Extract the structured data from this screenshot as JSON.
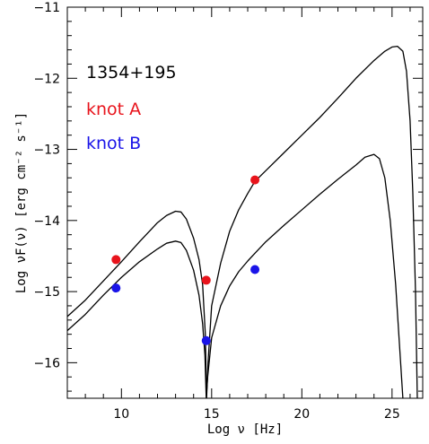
{
  "chart_data": {
    "type": "scatter",
    "xlabel": "Log ν [Hz]",
    "ylabel": "Log νF(ν) [erg cm⁻² s⁻¹]",
    "xlim": [
      7,
      26.7
    ],
    "ylim": [
      -16.5,
      -11
    ],
    "x_ticks": [
      10,
      15,
      20,
      25
    ],
    "y_ticks": [
      -16,
      -15,
      -14,
      -13,
      -12,
      -11
    ],
    "legend_title": "1354+195",
    "series": [
      {
        "name": "knot A",
        "color": "#e8141c",
        "points": [
          {
            "x": 9.7,
            "y": -14.55
          },
          {
            "x": 14.7,
            "y": -14.84
          },
          {
            "x": 17.4,
            "y": -13.43
          }
        ],
        "model": [
          [
            7.0,
            -15.35
          ],
          [
            8.0,
            -15.12
          ],
          [
            9.0,
            -14.85
          ],
          [
            10.0,
            -14.58
          ],
          [
            11.0,
            -14.3
          ],
          [
            12.0,
            -14.03
          ],
          [
            12.5,
            -13.93
          ],
          [
            13.0,
            -13.87
          ],
          [
            13.3,
            -13.88
          ],
          [
            13.6,
            -13.98
          ],
          [
            14.0,
            -14.25
          ],
          [
            14.3,
            -14.55
          ],
          [
            14.5,
            -14.9
          ],
          [
            14.65,
            -15.6
          ],
          [
            14.72,
            -16.5
          ],
          [
            14.8,
            -16.0
          ],
          [
            15.0,
            -15.2
          ],
          [
            15.5,
            -14.6
          ],
          [
            16.0,
            -14.15
          ],
          [
            16.5,
            -13.85
          ],
          [
            17.0,
            -13.62
          ],
          [
            17.4,
            -13.45
          ],
          [
            18.0,
            -13.3
          ],
          [
            19.0,
            -13.05
          ],
          [
            20.0,
            -12.8
          ],
          [
            21.0,
            -12.55
          ],
          [
            22.0,
            -12.28
          ],
          [
            23.0,
            -12.0
          ],
          [
            24.0,
            -11.75
          ],
          [
            24.6,
            -11.62
          ],
          [
            25.0,
            -11.56
          ],
          [
            25.3,
            -11.55
          ],
          [
            25.6,
            -11.62
          ],
          [
            25.8,
            -11.9
          ],
          [
            26.0,
            -12.6
          ],
          [
            26.15,
            -13.6
          ],
          [
            26.3,
            -15.0
          ],
          [
            26.4,
            -16.5
          ]
        ]
      },
      {
        "name": "knot B",
        "color": "#1a14e8",
        "points": [
          {
            "x": 9.7,
            "y": -14.95
          },
          {
            "x": 14.7,
            "y": -15.69
          },
          {
            "x": 17.4,
            "y": -14.69
          }
        ],
        "model": [
          [
            7.0,
            -15.55
          ],
          [
            8.0,
            -15.32
          ],
          [
            9.0,
            -15.05
          ],
          [
            10.0,
            -14.8
          ],
          [
            11.0,
            -14.58
          ],
          [
            12.0,
            -14.4
          ],
          [
            12.5,
            -14.32
          ],
          [
            13.0,
            -14.29
          ],
          [
            13.3,
            -14.31
          ],
          [
            13.6,
            -14.42
          ],
          [
            14.0,
            -14.7
          ],
          [
            14.3,
            -15.05
          ],
          [
            14.5,
            -15.45
          ],
          [
            14.63,
            -15.9
          ],
          [
            14.7,
            -16.5
          ],
          [
            14.78,
            -16.2
          ],
          [
            15.0,
            -15.65
          ],
          [
            15.5,
            -15.2
          ],
          [
            16.0,
            -14.92
          ],
          [
            16.5,
            -14.72
          ],
          [
            17.0,
            -14.57
          ],
          [
            17.4,
            -14.46
          ],
          [
            18.0,
            -14.3
          ],
          [
            19.0,
            -14.07
          ],
          [
            20.0,
            -13.85
          ],
          [
            21.0,
            -13.63
          ],
          [
            22.0,
            -13.42
          ],
          [
            23.0,
            -13.22
          ],
          [
            23.5,
            -13.11
          ],
          [
            24.0,
            -13.07
          ],
          [
            24.3,
            -13.13
          ],
          [
            24.6,
            -13.4
          ],
          [
            24.9,
            -14.0
          ],
          [
            25.2,
            -14.9
          ],
          [
            25.4,
            -15.7
          ],
          [
            25.6,
            -16.5
          ]
        ]
      }
    ]
  }
}
